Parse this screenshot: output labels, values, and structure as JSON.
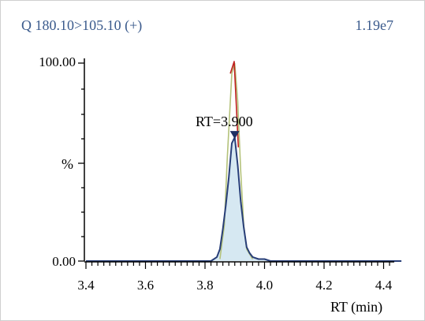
{
  "header": {
    "transition": "Q 180.10>105.10 (+)",
    "intensity": "1.19e7"
  },
  "chart_data": {
    "type": "line",
    "xlabel": "RT (min)",
    "ylabel": "%",
    "xlim": [
      3.4,
      4.46
    ],
    "ylim": [
      0,
      100
    ],
    "x_ticks": [
      "3.4",
      "3.6",
      "3.8",
      "4.0",
      "4.2",
      "4.4"
    ],
    "x_tick_values": [
      3.4,
      3.6,
      3.8,
      4.0,
      4.2,
      4.4
    ],
    "y_ticks": [
      "0.00",
      "100.00"
    ],
    "y_tick_values": [
      0,
      100
    ],
    "annotation": {
      "text": "RT=3.900",
      "x": 3.9,
      "y": 62
    },
    "colors": {
      "fill": "#d6e8f2",
      "trace": "#283e78",
      "overlay_green": "#b4c27a",
      "overlay_red": "#c02020",
      "marker": "#1f2f63"
    },
    "series": [
      {
        "color": "#283e78",
        "x": [
          3.4,
          3.82,
          3.84,
          3.85,
          3.86,
          3.87,
          3.88,
          3.89,
          3.9,
          3.91,
          3.92,
          3.93,
          3.94,
          3.95,
          3.96,
          3.98,
          4.0,
          4.02,
          4.05,
          4.46
        ],
        "y": [
          0,
          0,
          2,
          6,
          16,
          28,
          42,
          59,
          62,
          48,
          30,
          17,
          7,
          4,
          2,
          1,
          1,
          0,
          0,
          0
        ]
      },
      {
        "color": "#b4c27a",
        "x": [
          3.85,
          3.865,
          3.875,
          3.89,
          3.9,
          3.91,
          3.92,
          3.93,
          3.94,
          3.96
        ],
        "y": [
          1,
          18,
          52,
          94,
          99,
          80,
          45,
          18,
          6,
          1
        ]
      },
      {
        "color": "#c02020",
        "x": [
          3.885,
          3.898,
          3.912
        ],
        "y": [
          94,
          100,
          57
        ]
      }
    ]
  }
}
